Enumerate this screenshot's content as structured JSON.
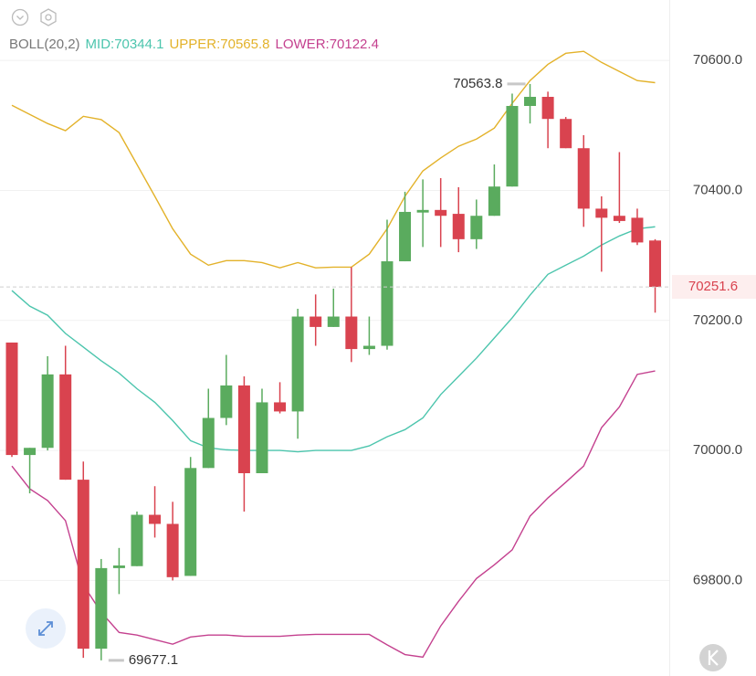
{
  "chart_data": {
    "type": "candlestick",
    "indicator": "BOLL(20,2)",
    "open": [
      70166,
      69993,
      70004,
      70117,
      69955,
      69695,
      69819,
      69822,
      69901,
      69887,
      69807,
      69973,
      70050,
      70100,
      69965,
      70074,
      70060,
      70206,
      70190,
      70206,
      70156,
      70161,
      70291,
      70366,
      70370,
      70364,
      70325,
      70361,
      70406,
      70530,
      70544,
      70510,
      70465,
      70372,
      70361,
      70358,
      70323
    ],
    "high": [
      70166,
      70004,
      70145,
      70161,
      69983,
      69833,
      69850,
      69906,
      69945,
      69921,
      69990,
      70095,
      70147,
      70114,
      70095,
      70105,
      70218,
      70240,
      70249,
      70282,
      70206,
      70355,
      70398,
      70417,
      70419,
      70405,
      70386,
      70440,
      70549,
      70563.8,
      70552,
      70513,
      70485,
      70391,
      70459,
      70372,
      70325
    ],
    "low": [
      69990,
      69934,
      70000,
      69955,
      69681,
      69677.1,
      69779,
      69822,
      69866,
      69800,
      69807,
      69973,
      70039,
      69906,
      69965,
      70057,
      70018,
      70161,
      70190,
      70136,
      70147,
      70155,
      70291,
      70313,
      70313,
      70305,
      70310,
      70361,
      70406,
      70503,
      70465,
      70465,
      70344,
      70275,
      70350,
      70316,
      70212
    ],
    "close": [
      69993,
      70004,
      70117,
      69955,
      69695,
      69819,
      69823,
      69901,
      69887,
      69805,
      69973,
      70050,
      70100,
      69965,
      70074,
      70060,
      70206,
      70190,
      70206,
      70156,
      70161,
      70291,
      70367,
      70370,
      70361,
      70325,
      70361,
      70406,
      70530,
      70544,
      70510,
      70465,
      70372,
      70358,
      70353,
      70320,
      70251.6
    ],
    "up_color": "#5aab5e",
    "down_color": "#d9434f",
    "series": [
      {
        "name": "MID:70344.1",
        "color": "#4cc5ad",
        "values": [
          70246,
          70222,
          70208,
          70180,
          70159,
          70138,
          70119,
          70095,
          70074,
          70046,
          70015,
          70004,
          70001,
          70000,
          70000,
          70000,
          69998,
          70000,
          70000,
          70000,
          70007,
          70021,
          70032,
          70050,
          70086,
          70114,
          70142,
          70173,
          70204,
          70239,
          70271,
          70285,
          70299,
          70316,
          70330,
          70341,
          70344.1
        ]
      },
      {
        "name": "UPPER:70565.8",
        "color": "#e3b22a",
        "values": [
          70531,
          70517,
          70503,
          70492,
          70514,
          70509,
          70489,
          70440,
          70391,
          70341,
          70302,
          70285,
          70292,
          70292,
          70289,
          70281,
          70289,
          70281,
          70282,
          70282,
          70302,
          70341,
          70391,
          70430,
          70450,
          70468,
          70479,
          70496,
          70534,
          70569,
          70594,
          70611,
          70614,
          70597,
          70583,
          70569,
          70565.8
        ]
      },
      {
        "name": "LOWER:70122.4",
        "color": "#c4418f",
        "values": [
          69976,
          69941,
          69923,
          69892,
          69793,
          69751,
          69720,
          69716,
          69709,
          69702,
          69713,
          69716,
          69716,
          69714,
          69714,
          69714,
          69716,
          69717,
          69717,
          69717,
          69717,
          69701,
          69686,
          69682,
          69730,
          69768,
          69803,
          69824,
          69847,
          69899,
          69927,
          69951,
          69976,
          70035,
          70067,
          70117,
          70122.4
        ]
      }
    ],
    "high_marker": 70563.8,
    "low_marker": 69677.1,
    "last_price": 70251.6,
    "ylim": [
      69653,
      70693
    ],
    "yticks": [
      {
        "value": 70600,
        "label": "70600.0"
      },
      {
        "value": 70400,
        "label": "70400.0"
      },
      {
        "value": 70200,
        "label": "70200.0"
      },
      {
        "value": 70000,
        "label": "70000.0"
      },
      {
        "value": 69800,
        "label": "69800.0"
      }
    ],
    "grid": true
  }
}
